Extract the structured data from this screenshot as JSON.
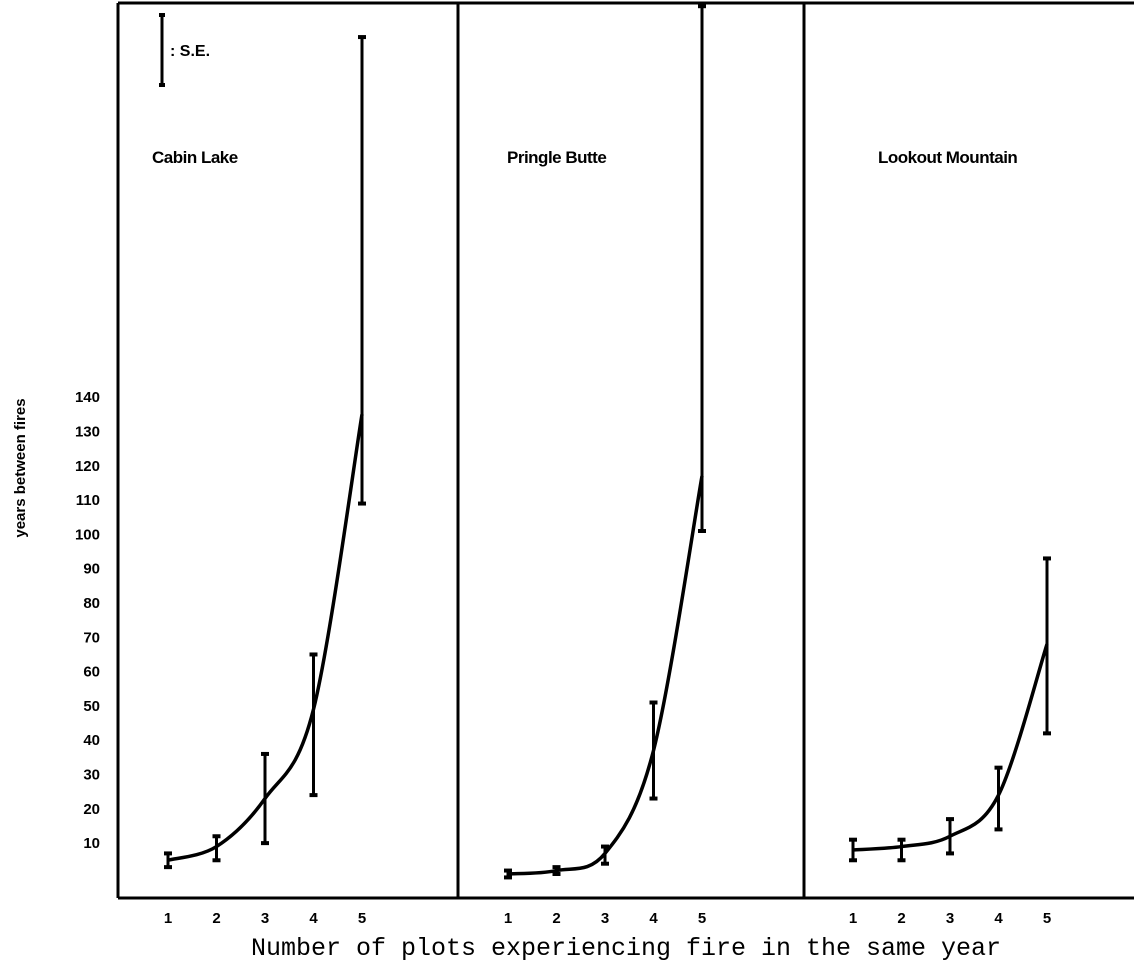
{
  "chart_data": {
    "type": "line",
    "xlabel": "Number of plots experiencing fire in the same year",
    "ylabel": "years between fires",
    "y_ticks": [
      10,
      20,
      30,
      40,
      50,
      60,
      70,
      80,
      90,
      100,
      110,
      120,
      130,
      140
    ],
    "x_ticks": [
      1,
      2,
      3,
      4,
      5
    ],
    "ylim": [
      -6,
      255
    ],
    "legend": {
      "label": ": S.E.",
      "placement": "top-left"
    },
    "panels": [
      {
        "title": "Cabin Lake",
        "x": [
          1,
          2,
          3,
          4,
          5
        ],
        "values": [
          5,
          9,
          23,
          49,
          135
        ],
        "se_low": [
          3,
          5,
          10,
          24,
          109
        ],
        "se_high": [
          7,
          12,
          36,
          65,
          245
        ]
      },
      {
        "title": "Pringle Butte",
        "x": [
          1,
          2,
          3,
          4,
          5
        ],
        "values": [
          1,
          2,
          7,
          37,
          117
        ],
        "se_low": [
          0,
          1,
          4,
          23,
          101
        ],
        "se_high": [
          2,
          3,
          9,
          51,
          254
        ]
      },
      {
        "title": "Lookout Mountain",
        "x": [
          1,
          2,
          3,
          4,
          5
        ],
        "values": [
          8,
          9,
          12,
          24,
          68
        ],
        "se_low": [
          5,
          5,
          7,
          14,
          42
        ],
        "se_high": [
          11,
          11,
          17,
          32,
          93
        ]
      }
    ]
  }
}
